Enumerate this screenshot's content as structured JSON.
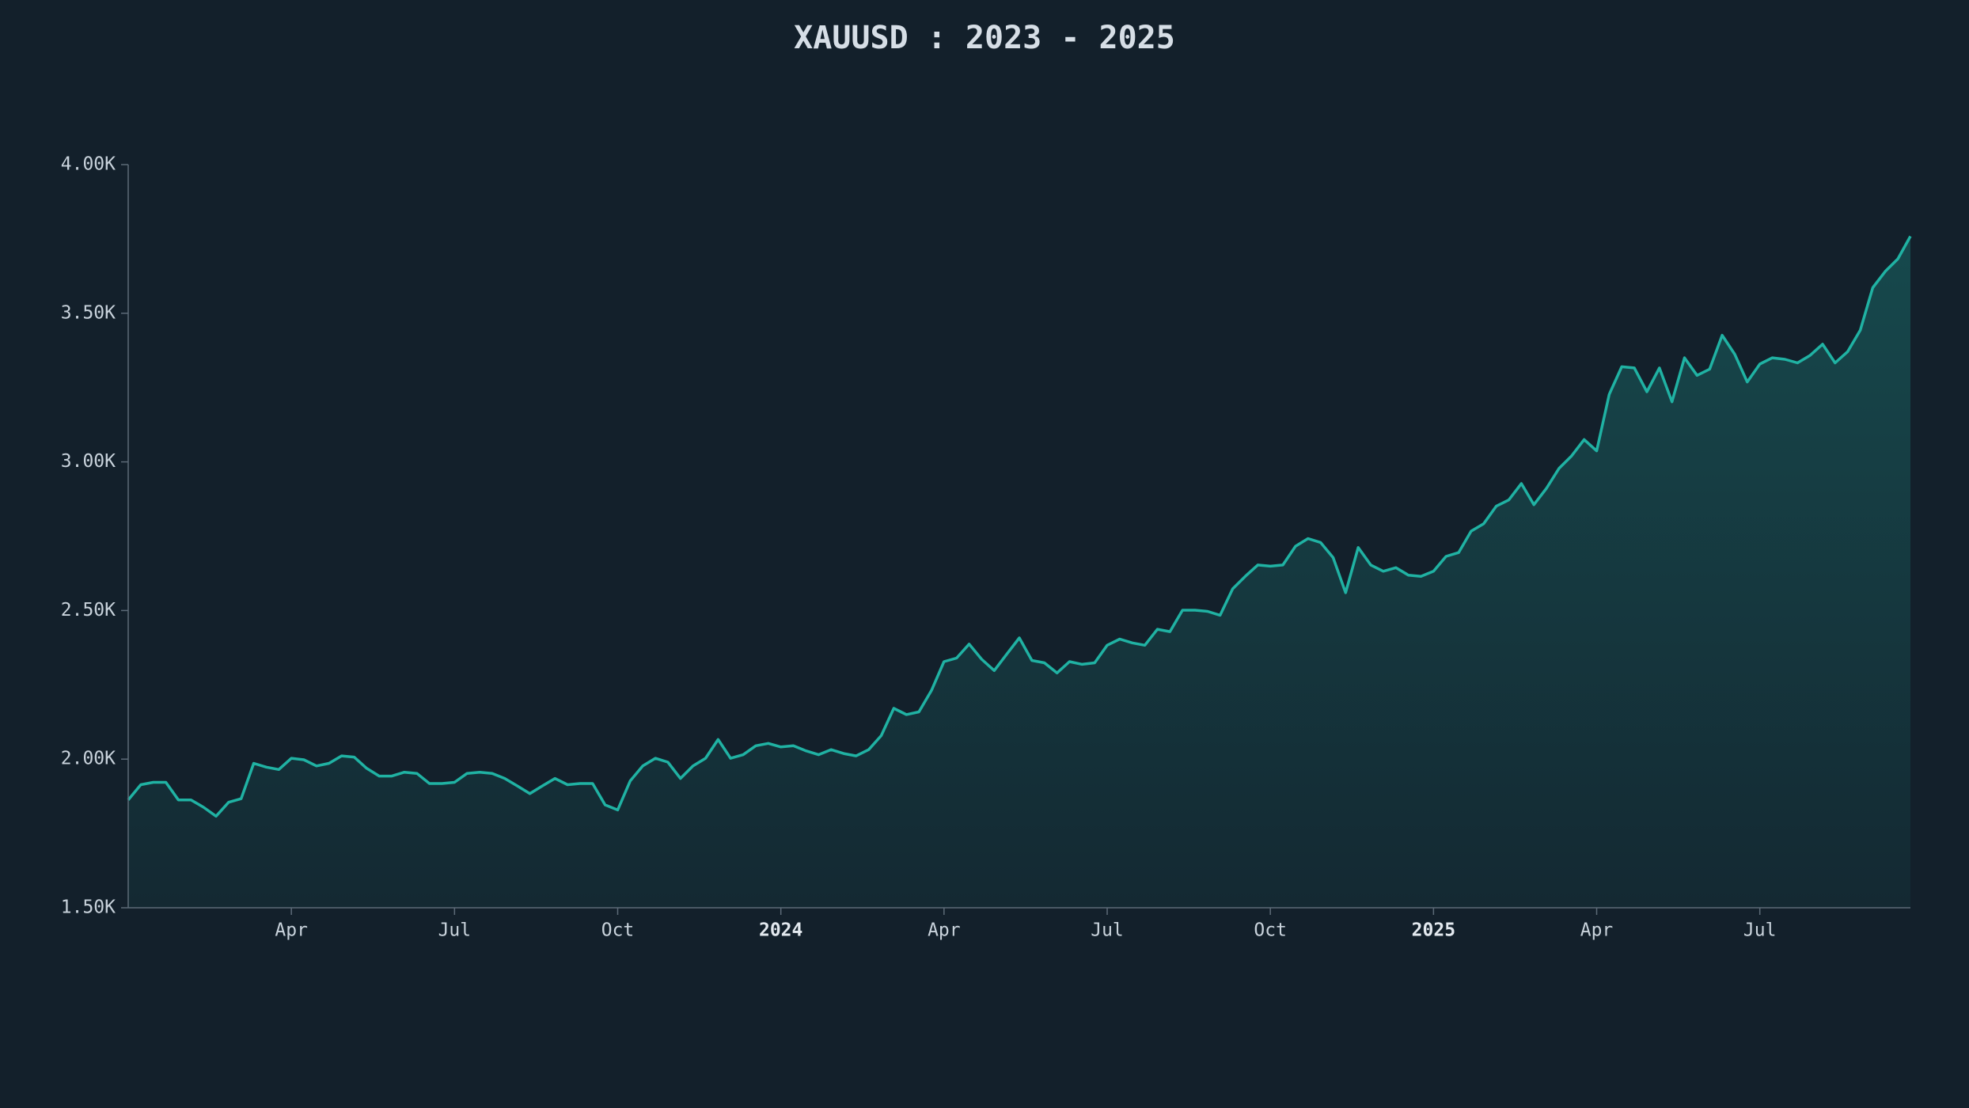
{
  "chart_data": {
    "type": "area",
    "title": "XAUUSD : 2023 - 2025",
    "categories": [
      null,
      null,
      null,
      null,
      null,
      null,
      null,
      null,
      null,
      null,
      null,
      null,
      null,
      "Apr",
      null,
      null,
      null,
      null,
      null,
      null,
      null,
      null,
      null,
      null,
      null,
      null,
      "Jul",
      null,
      null,
      null,
      null,
      null,
      null,
      null,
      null,
      null,
      null,
      null,
      null,
      "Oct",
      null,
      null,
      null,
      null,
      null,
      null,
      null,
      null,
      null,
      null,
      null,
      null,
      "2024",
      null,
      null,
      null,
      null,
      null,
      null,
      null,
      null,
      null,
      null,
      null,
      null,
      "Apr",
      null,
      null,
      null,
      null,
      null,
      null,
      null,
      null,
      null,
      null,
      null,
      null,
      "Jul",
      null,
      null,
      null,
      null,
      null,
      null,
      null,
      null,
      null,
      null,
      null,
      null,
      "Oct",
      null,
      null,
      null,
      null,
      null,
      null,
      null,
      null,
      null,
      null,
      null,
      null,
      "2025",
      null,
      null,
      null,
      null,
      null,
      null,
      null,
      null,
      null,
      null,
      null,
      null,
      "Apr",
      null,
      null,
      null,
      null,
      null,
      null,
      null,
      null,
      null,
      null,
      null,
      null,
      "Jul",
      null,
      null,
      null,
      null,
      null,
      null,
      null,
      null,
      null,
      null,
      null,
      null
    ],
    "values": [
      1863,
      1914,
      1922,
      1922,
      1863,
      1863,
      1838,
      1808,
      1855,
      1867,
      1986,
      1973,
      1965,
      2003,
      1998,
      1977,
      1986,
      2011,
      2007,
      1969,
      1943,
      1943,
      1956,
      1952,
      1918,
      1918,
      1922,
      1952,
      1956,
      1952,
      1935,
      1910,
      1884,
      1910,
      1935,
      1914,
      1918,
      1918,
      1846,
      1829,
      1927,
      1977,
      2003,
      1990,
      1935,
      1977,
      2003,
      2066,
      2003,
      2015,
      2045,
      2053,
      2041,
      2045,
      2028,
      2015,
      2032,
      2019,
      2011,
      2032,
      2079,
      2171,
      2150,
      2159,
      2231,
      2328,
      2340,
      2387,
      2336,
      2298,
      2353,
      2408,
      2332,
      2324,
      2290,
      2328,
      2319,
      2324,
      2383,
      2404,
      2391,
      2383,
      2437,
      2429,
      2501,
      2501,
      2497,
      2484,
      2573,
      2615,
      2653,
      2649,
      2653,
      2716,
      2742,
      2729,
      2678,
      2560,
      2712,
      2653,
      2632,
      2644,
      2619,
      2615,
      2632,
      2682,
      2695,
      2767,
      2792,
      2851,
      2872,
      2927,
      2856,
      2911,
      2978,
      3020,
      3075,
      3037,
      3227,
      3320,
      3316,
      3236,
      3316,
      3202,
      3350,
      3291,
      3312,
      3426,
      3362,
      3269,
      3329,
      3350,
      3345,
      3333,
      3358,
      3396,
      3333,
      3371,
      3443,
      3586,
      3641,
      3683,
      3759
    ],
    "color": "#20b2a3",
    "ylim": [
      1500,
      4000
    ],
    "yticks": [
      {
        "value": 1500,
        "label": "1.50K"
      },
      {
        "value": 2000,
        "label": "2.00K"
      },
      {
        "value": 2500,
        "label": "2.50K"
      },
      {
        "value": 3000,
        "label": "3.00K"
      },
      {
        "value": 3500,
        "label": "3.50K"
      },
      {
        "value": 4000,
        "label": "4.00K"
      }
    ],
    "grid": false
  }
}
